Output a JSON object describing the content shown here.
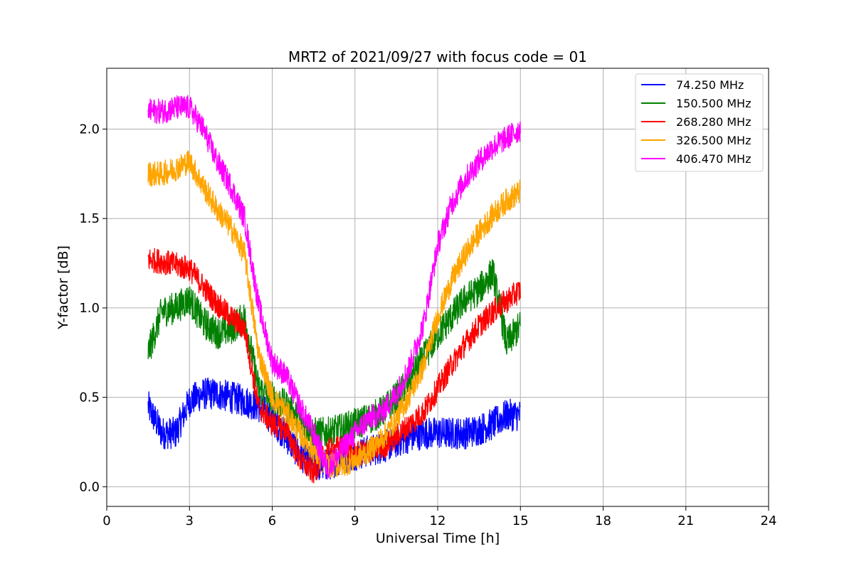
{
  "chart_data": {
    "type": "line",
    "title": "MRT2 of 2021/09/27 with focus code = 01",
    "xlabel": "Universal Time [h]",
    "ylabel": "Y-factor [dB]",
    "xlim": [
      0,
      24
    ],
    "ylim": [
      -0.11,
      2.34
    ],
    "xticks": [
      0,
      3,
      6,
      9,
      12,
      15,
      18,
      21,
      24
    ],
    "xtick_labels": [
      "0",
      "3",
      "6",
      "9",
      "12",
      "15",
      "18",
      "21",
      "24"
    ],
    "yticks": [
      0.0,
      0.5,
      1.0,
      1.5,
      2.0
    ],
    "ytick_labels": [
      "0.0",
      "0.5",
      "1.0",
      "1.5",
      "2.0"
    ],
    "grid": true,
    "legend_position": "top-right",
    "series": [
      {
        "name": " 74.250 MHz",
        "color": "#0000ff",
        "noise": 0.09,
        "x": [
          1.5,
          2.0,
          2.5,
          3.0,
          3.5,
          4.0,
          4.5,
          5.0,
          5.5,
          6.0,
          6.5,
          7.0,
          7.5,
          8.0,
          8.5,
          9.0,
          9.5,
          10.0,
          10.5,
          11.0,
          11.5,
          12.0,
          12.5,
          13.0,
          13.5,
          14.0,
          14.5,
          15.0
        ],
        "y": [
          0.45,
          0.3,
          0.3,
          0.48,
          0.52,
          0.52,
          0.5,
          0.48,
          0.45,
          0.38,
          0.28,
          0.18,
          0.12,
          0.12,
          0.16,
          0.18,
          0.2,
          0.22,
          0.25,
          0.28,
          0.3,
          0.3,
          0.3,
          0.3,
          0.32,
          0.35,
          0.4,
          0.4
        ]
      },
      {
        "name": "150.500 MHz",
        "color": "#008000",
        "noise": 0.09,
        "x": [
          1.5,
          2.0,
          2.5,
          3.0,
          3.5,
          4.0,
          4.5,
          5.0,
          5.5,
          6.0,
          6.5,
          7.0,
          7.5,
          8.0,
          8.5,
          9.0,
          9.5,
          10.0,
          10.5,
          11.0,
          11.5,
          12.0,
          12.5,
          13.0,
          13.5,
          14.0,
          14.5,
          15.0
        ],
        "y": [
          0.75,
          0.98,
          1.0,
          1.05,
          0.92,
          0.86,
          0.88,
          0.95,
          0.55,
          0.5,
          0.45,
          0.38,
          0.3,
          0.3,
          0.32,
          0.35,
          0.38,
          0.42,
          0.5,
          0.6,
          0.72,
          0.85,
          0.95,
          1.05,
          1.1,
          1.2,
          0.8,
          0.9
        ]
      },
      {
        "name": "268.280 MHz",
        "color": "#ff0000",
        "noise": 0.07,
        "x": [
          1.5,
          2.0,
          2.5,
          3.0,
          3.5,
          4.0,
          4.5,
          5.0,
          5.5,
          6.0,
          6.5,
          7.0,
          7.5,
          8.0,
          8.5,
          9.0,
          9.5,
          10.0,
          10.5,
          11.0,
          11.5,
          12.0,
          12.5,
          13.0,
          13.5,
          14.0,
          14.5,
          15.0
        ],
        "y": [
          1.27,
          1.26,
          1.24,
          1.22,
          1.12,
          1.02,
          0.95,
          0.88,
          0.45,
          0.35,
          0.32,
          0.15,
          0.08,
          0.2,
          0.22,
          0.18,
          0.2,
          0.22,
          0.28,
          0.35,
          0.42,
          0.55,
          0.68,
          0.8,
          0.9,
          0.98,
          1.04,
          1.1
        ]
      },
      {
        "name": "326.500 MHz",
        "color": "#ffa500",
        "noise": 0.07,
        "x": [
          1.5,
          2.0,
          2.5,
          3.0,
          3.5,
          4.0,
          4.5,
          5.0,
          5.5,
          6.0,
          6.5,
          7.0,
          7.5,
          8.0,
          8.5,
          9.0,
          9.5,
          10.0,
          10.5,
          11.0,
          11.5,
          12.0,
          12.5,
          13.0,
          13.5,
          14.0,
          14.5,
          15.0
        ],
        "y": [
          1.75,
          1.75,
          1.78,
          1.82,
          1.68,
          1.55,
          1.45,
          1.3,
          0.75,
          0.5,
          0.42,
          0.3,
          0.2,
          0.12,
          0.12,
          0.15,
          0.2,
          0.27,
          0.38,
          0.52,
          0.68,
          0.95,
          1.15,
          1.3,
          1.42,
          1.52,
          1.6,
          1.65
        ]
      },
      {
        "name": "406.470 MHz",
        "color": "#ff00ff",
        "noise": 0.07,
        "x": [
          1.5,
          2.0,
          2.5,
          3.0,
          3.5,
          4.0,
          4.5,
          5.0,
          5.5,
          6.0,
          6.5,
          7.0,
          7.5,
          8.0,
          8.5,
          9.0,
          9.5,
          10.0,
          10.5,
          11.0,
          11.5,
          12.0,
          12.5,
          13.0,
          13.5,
          14.0,
          14.5,
          15.0
        ],
        "y": [
          2.1,
          2.1,
          2.12,
          2.12,
          2.0,
          1.82,
          1.68,
          1.5,
          1.02,
          0.7,
          0.62,
          0.45,
          0.3,
          0.1,
          0.2,
          0.3,
          0.38,
          0.42,
          0.52,
          0.68,
          0.92,
          1.35,
          1.58,
          1.72,
          1.82,
          1.9,
          1.95,
          2.0
        ]
      }
    ]
  }
}
